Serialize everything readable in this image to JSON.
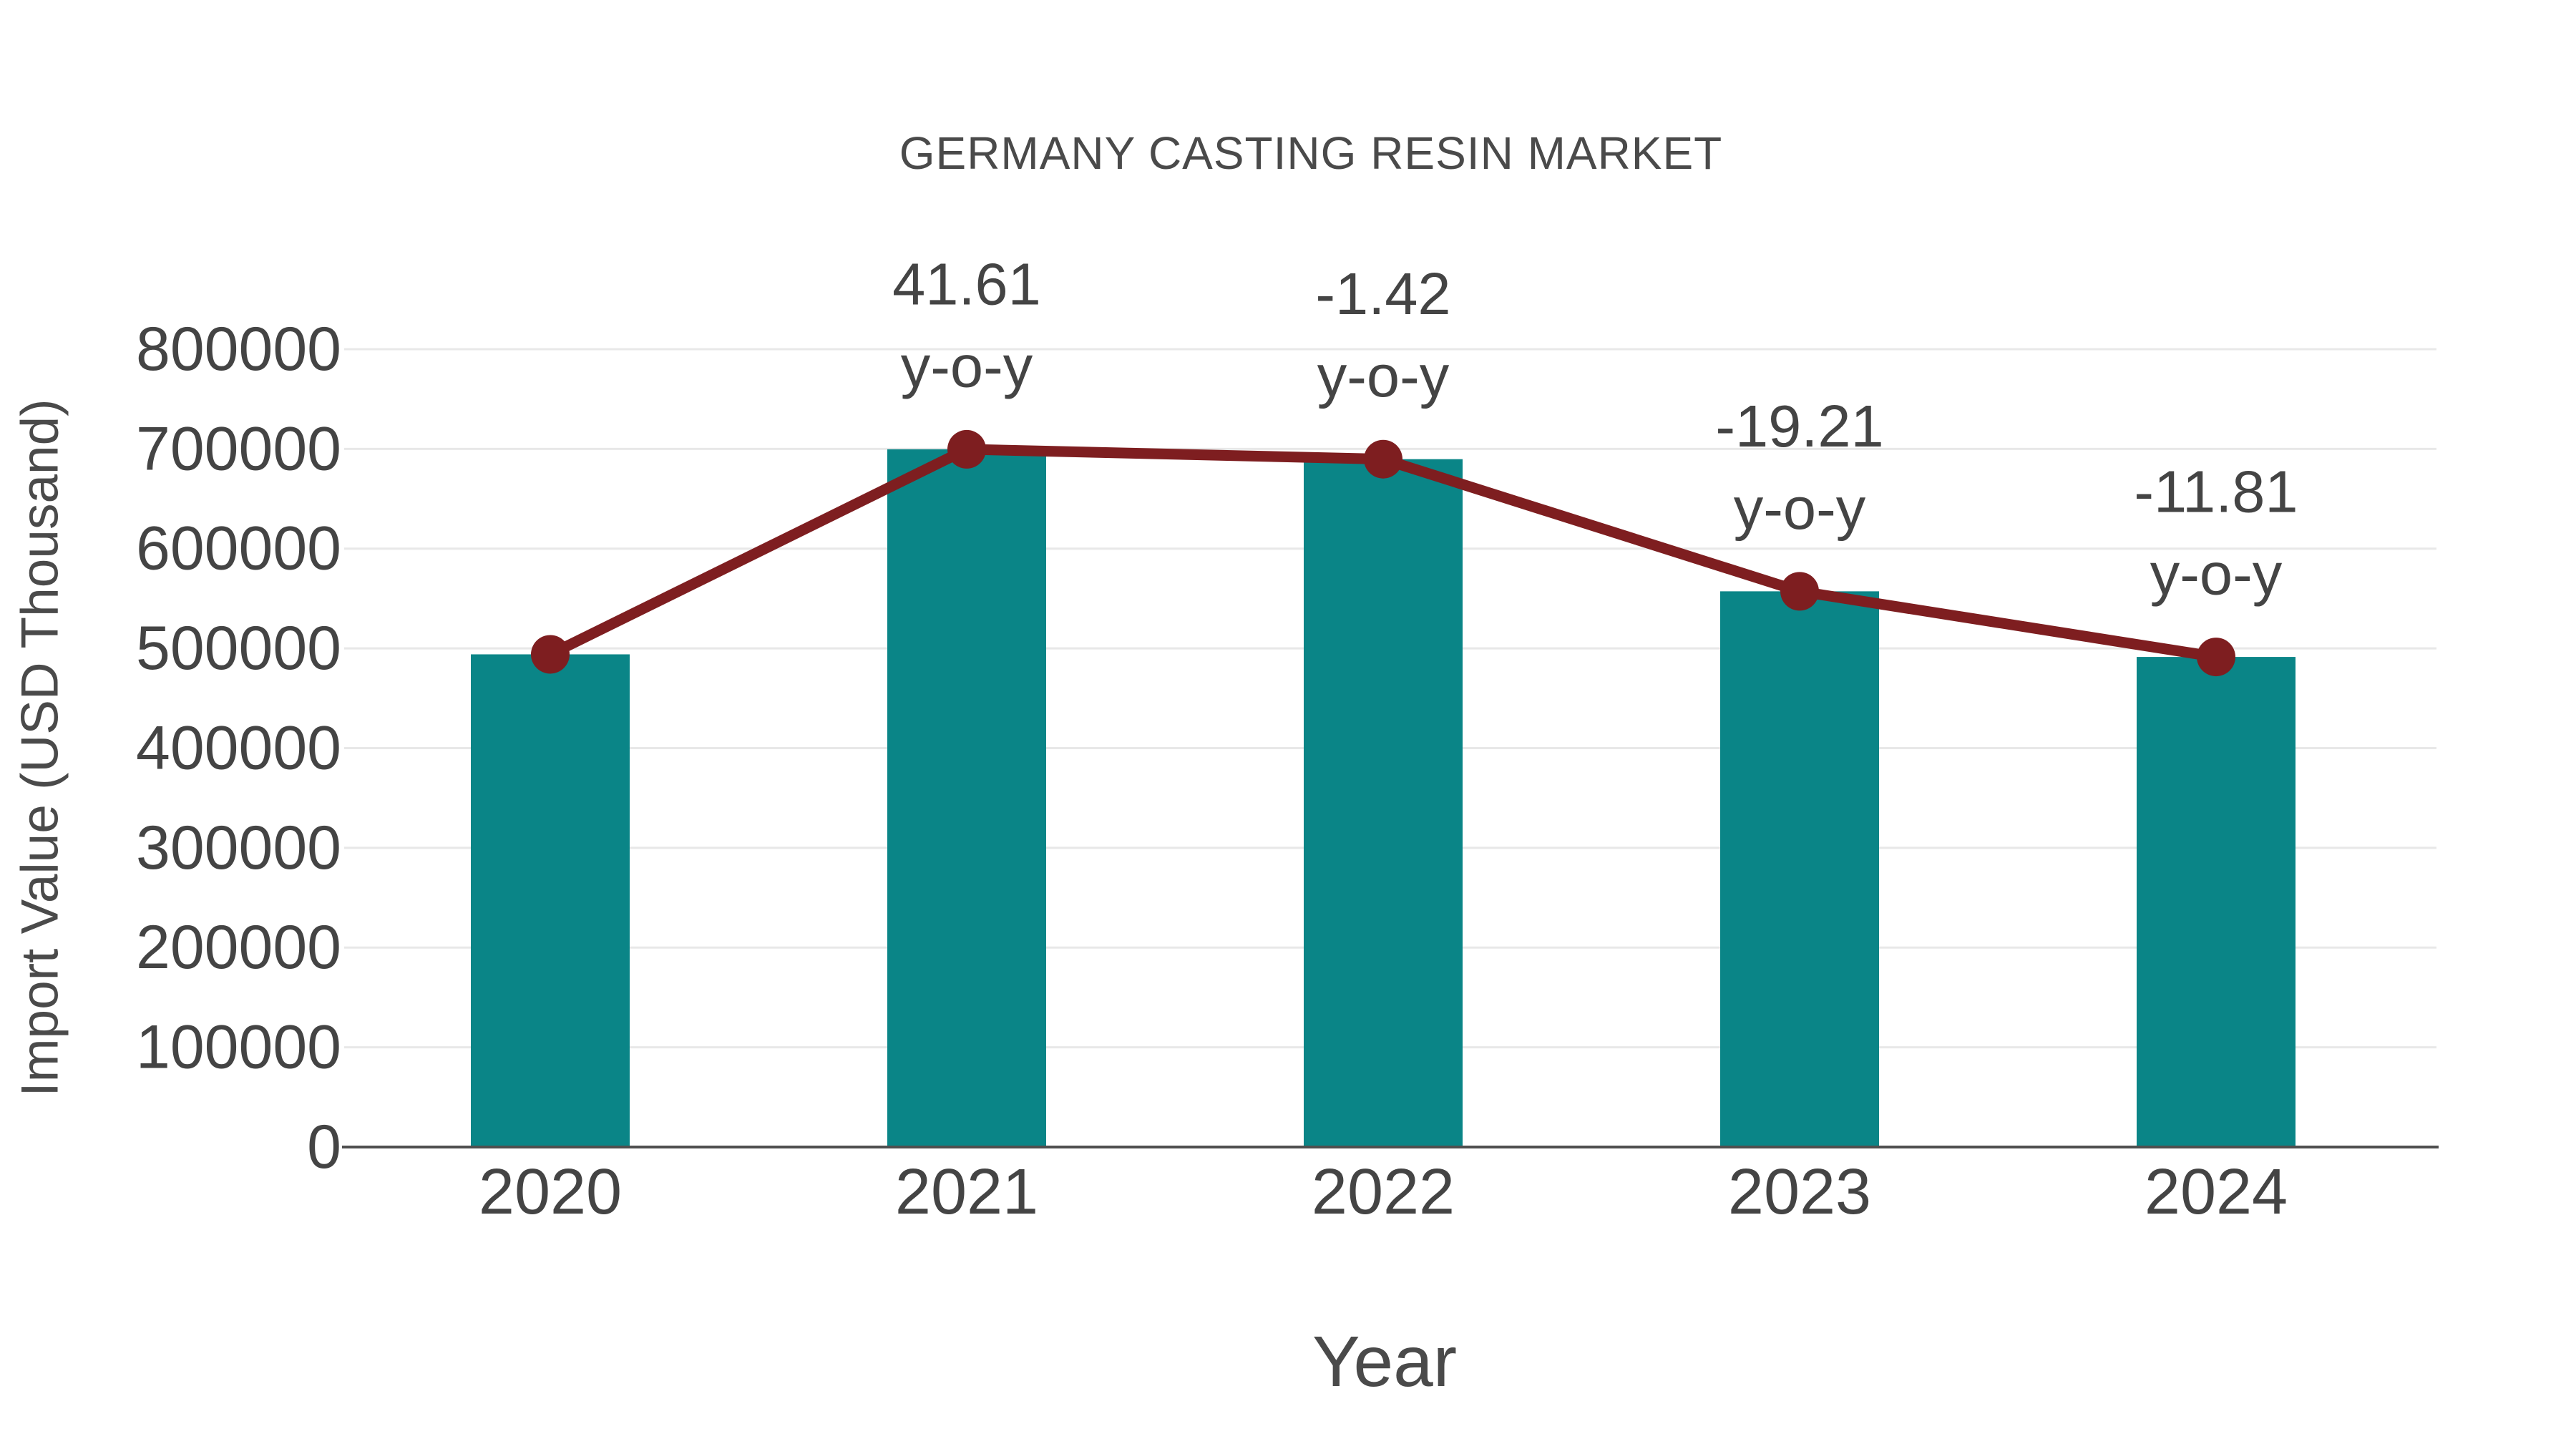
{
  "chart_data": {
    "type": "bar",
    "subtype": "bar-with-line-overlay",
    "title": "GERMANY CASTING RESIN MARKET",
    "xlabel": "Year",
    "ylabel": "Import Value (USD Thousand)",
    "categories": [
      "2020",
      "2021",
      "2022",
      "2023",
      "2024"
    ],
    "series": [
      {
        "name": "Import Value bars",
        "type": "bar",
        "values": [
          494000,
          699600,
          689700,
          557200,
          491400
        ],
        "color": "#0a8587"
      },
      {
        "name": "Import Value trend line",
        "type": "line",
        "values": [
          494000,
          699600,
          689700,
          557200,
          491400
        ],
        "color": "#7e1e20"
      }
    ],
    "yoy_percent": [
      null,
      41.61,
      -1.42,
      -19.21,
      -11.81
    ],
    "annotations": [
      {
        "category": "2021",
        "line1": "41.61",
        "line2": "y-o-y"
      },
      {
        "category": "2022",
        "line1": "-1.42",
        "line2": "y-o-y"
      },
      {
        "category": "2023",
        "line1": "-19.21",
        "line2": "y-o-y"
      },
      {
        "category": "2024",
        "line1": "-11.81",
        "line2": "y-o-y"
      }
    ],
    "y_ticks": [
      0,
      100000,
      200000,
      300000,
      400000,
      500000,
      600000,
      700000,
      800000
    ],
    "ylim": [
      0,
      800000
    ],
    "grid": "horizontal",
    "legend": "none",
    "colors": {
      "bar": "#0a8587",
      "line": "#7e1e20",
      "marker": "#7e1e20",
      "gridline": "#e8e8e8",
      "axis_line": "#4f4f4f",
      "text": "#444444",
      "title_text": "#4a4a4a",
      "background": "#ffffff"
    }
  }
}
